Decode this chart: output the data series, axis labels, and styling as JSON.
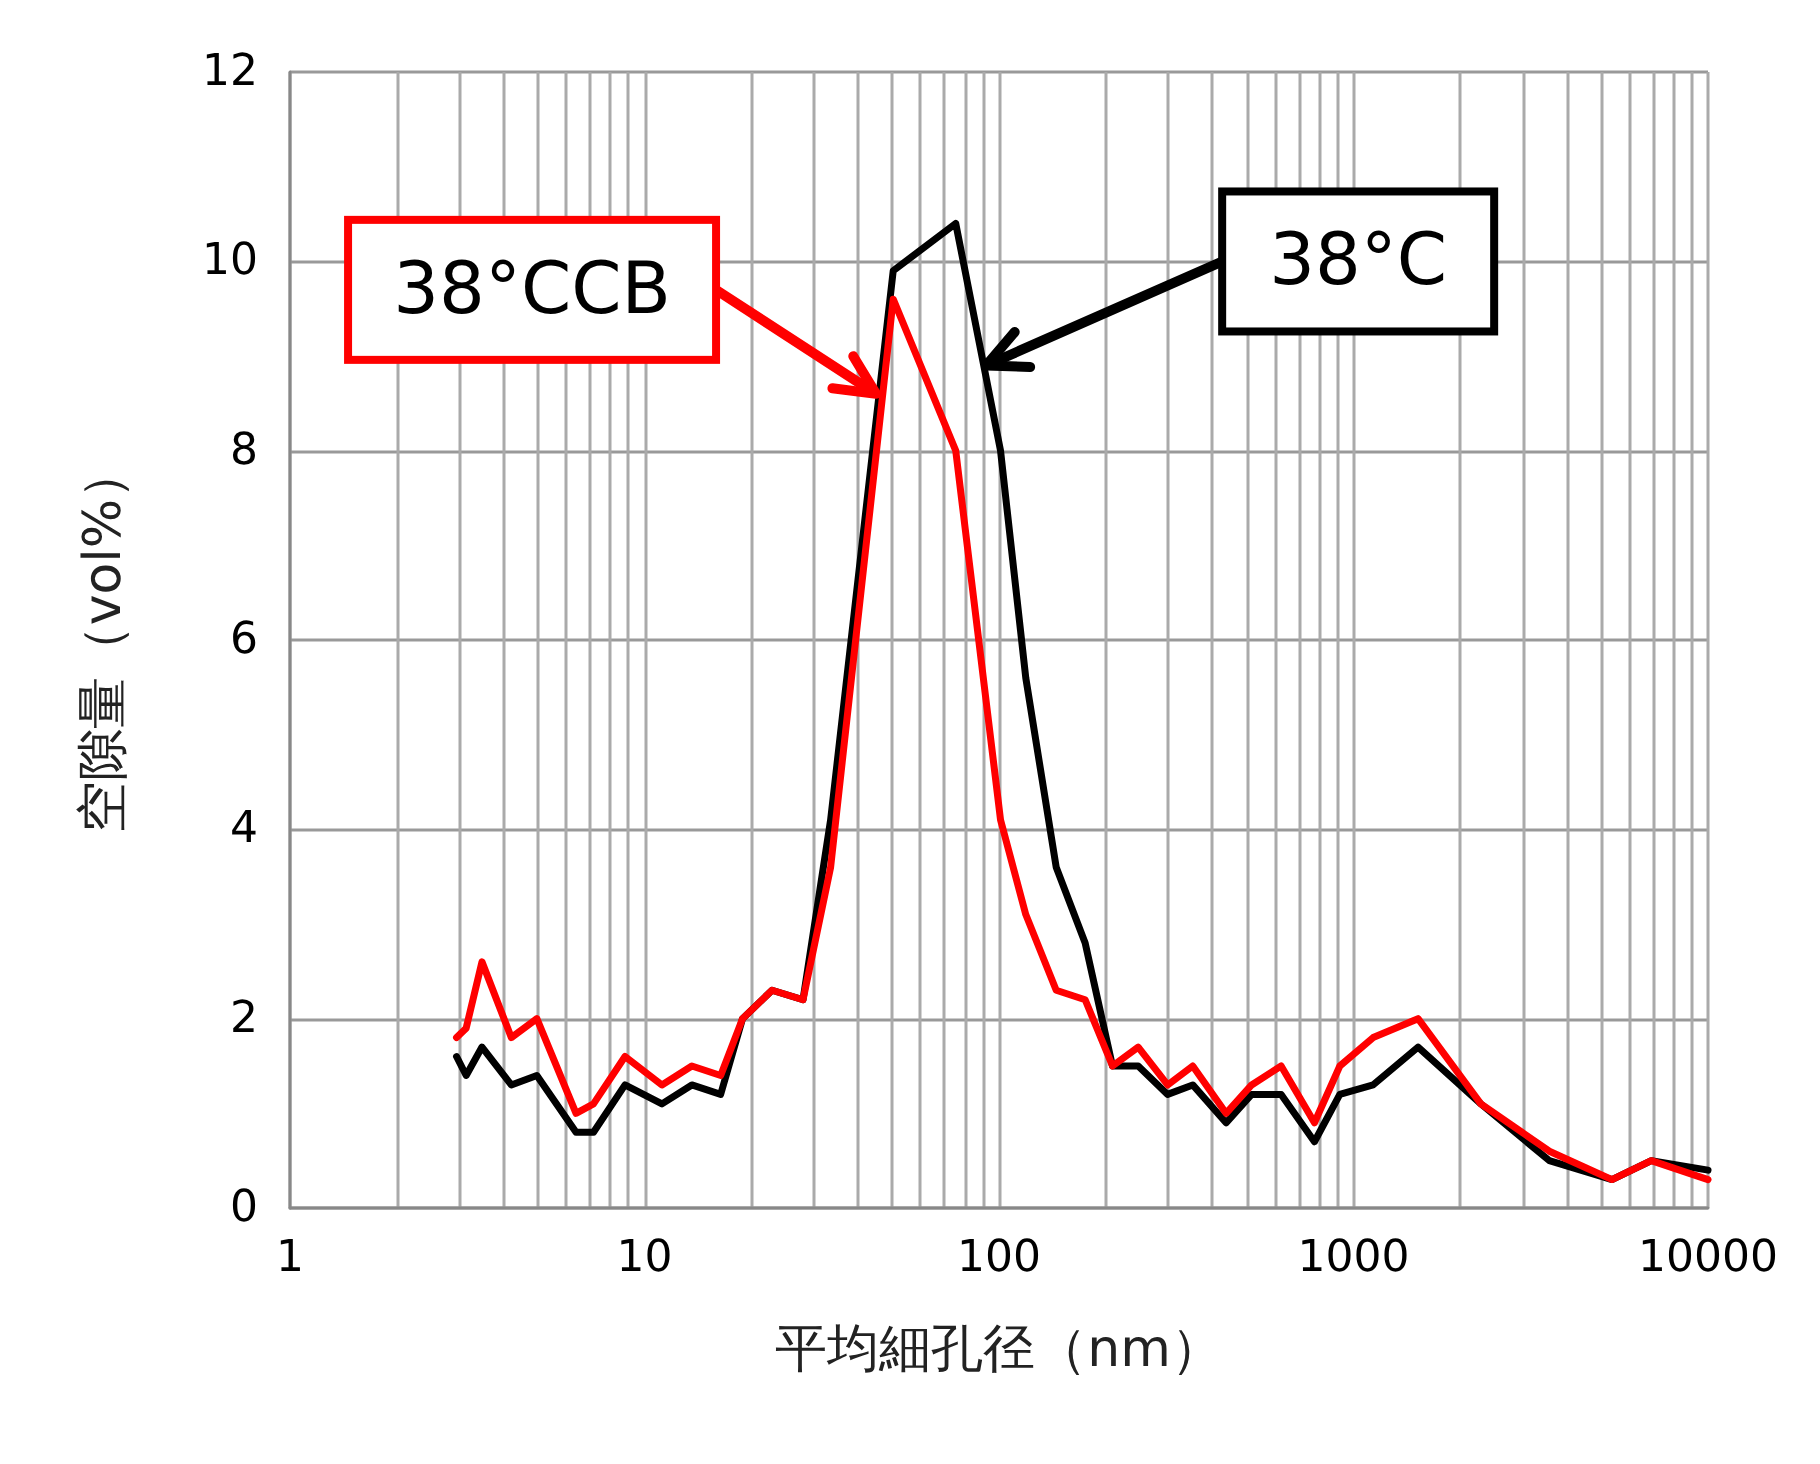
{
  "chart_data": {
    "type": "line",
    "xlabel": "平均細孔径（nm）",
    "ylabel": "空隙量（vol%）",
    "log": "x",
    "grid": true,
    "marker": "none",
    "line_style": "solid",
    "xlim": [
      1,
      10000
    ],
    "xticks": [
      1,
      10,
      100,
      1000,
      10000
    ],
    "ylim": [
      0,
      12
    ],
    "yticks": [
      0,
      2,
      4,
      6,
      8,
      10,
      12
    ],
    "x": [
      2.95,
      3.14,
      3.48,
      4.21,
      4.97,
      6.41,
      7.18,
      8.81,
      11.2,
      13.6,
      16.4,
      18.9,
      22.9,
      28,
      33.5,
      50.3,
      75.5,
      101,
      119,
      145,
      175,
      209,
      247,
      299,
      352,
      437,
      516,
      625,
      776,
      915,
      1136,
      1521,
      2287,
      3568,
      5360,
      6919,
      10000
    ],
    "series": [
      {
        "color": "#000000",
        "values": [
          1.6,
          1.4,
          1.7,
          1.3,
          1.4,
          0.8,
          0.8,
          1.3,
          1.1,
          1.3,
          1.2,
          2.0,
          2.3,
          2.2,
          4.1,
          9.9,
          10.4,
          8.0,
          5.6,
          3.6,
          2.8,
          1.5,
          1.5,
          1.2,
          1.3,
          0.9,
          1.2,
          1.2,
          0.7,
          1.2,
          1.3,
          1.7,
          1.1,
          0.5,
          0.3,
          0.5,
          0.4
        ]
      },
      {
        "color": "#ff0000",
        "values": [
          1.8,
          1.9,
          2.6,
          1.8,
          2.0,
          1.0,
          1.1,
          1.6,
          1.3,
          1.5,
          1.4,
          2.0,
          2.3,
          2.2,
          3.6,
          9.6,
          8.0,
          4.1,
          3.1,
          2.3,
          2.2,
          1.5,
          1.7,
          1.3,
          1.5,
          1.0,
          1.3,
          1.5,
          0.9,
          1.5,
          1.8,
          2.0,
          1.1,
          0.6,
          0.3,
          0.5,
          0.3
        ]
      }
    ],
    "annotations": [
      {
        "text": "38°C",
        "x": 92,
        "y": 8.9
      },
      {
        "text": "38°CCB",
        "x": 45,
        "y": 8.6
      }
    ]
  }
}
